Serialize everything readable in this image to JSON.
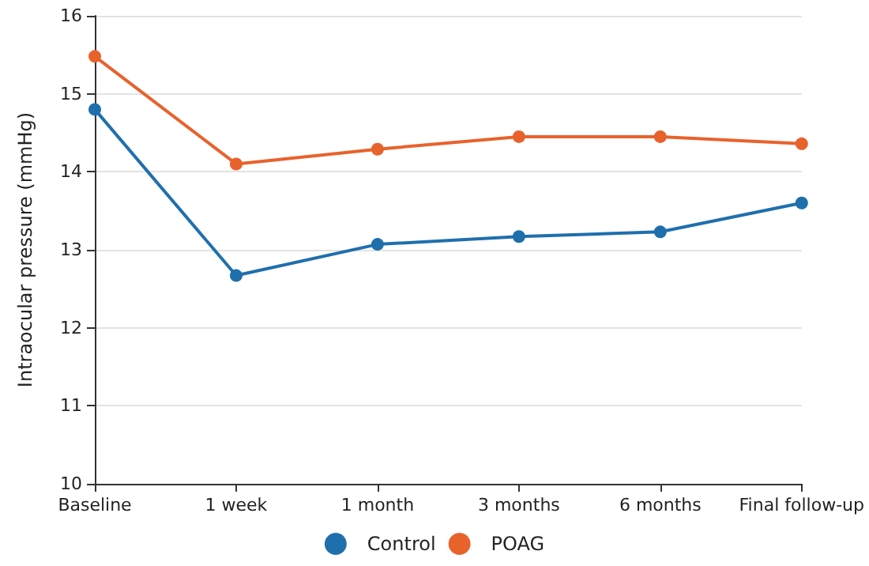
{
  "chart_data": {
    "type": "line",
    "ylabel": "Intraocular pressure (mmHg)",
    "categories": [
      "Baseline",
      "1 week",
      "1 month",
      "3 months",
      "6 months",
      "Final follow-up"
    ],
    "series": [
      {
        "name": "Control",
        "color": "#1f6fad",
        "values": [
          14.8,
          12.67,
          13.07,
          13.17,
          13.23,
          13.6
        ]
      },
      {
        "name": "POAG",
        "color": "#e8622c",
        "values": [
          15.48,
          14.1,
          14.29,
          14.45,
          14.45,
          14.36
        ]
      }
    ],
    "ylim": [
      10,
      16
    ],
    "yticks": [
      10,
      11,
      12,
      13,
      14,
      15,
      16
    ],
    "grid": "y",
    "legend": "bottom",
    "marker": "circle",
    "line_style": "solid"
  }
}
